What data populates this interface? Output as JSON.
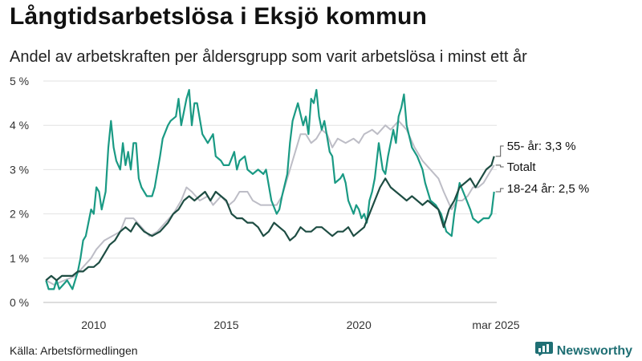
{
  "header": {
    "title": "Långtidsarbetslösa i Eksjö kommun",
    "subtitle": "Andel av arbetskraften per åldersgrupp som varit arbetslösa i minst ett år"
  },
  "footer": {
    "source": "Källa: Arbetsförmedlingen",
    "brand": "Newsworthy"
  },
  "icons": {
    "brand_logo": "newsworthy-logo-icon"
  },
  "colors": {
    "young": "#1a9a84",
    "older": "#1e4d43",
    "total": "#bdbdc6",
    "brand": "#1f6f74"
  },
  "chart_data": {
    "type": "line",
    "xlim": [
      2008.1,
      2025.2
    ],
    "ylim": [
      0,
      5
    ],
    "y_ticks": [
      0,
      1,
      2,
      3,
      4,
      5
    ],
    "y_tick_labels": [
      "0 %",
      "1 %",
      "2 %",
      "3 %",
      "4 %",
      "5 %"
    ],
    "x_ticks": [
      2010,
      2015,
      2020,
      2025.17
    ],
    "x_tick_labels": [
      "2010",
      "2015",
      "2020",
      "mar 2025"
    ],
    "grid": true,
    "series": [
      {
        "key": "total",
        "name": "Totalt",
        "label_text": "Totalt",
        "points": [
          [
            2008.2,
            0.5
          ],
          [
            2008.5,
            0.4
          ],
          [
            2008.9,
            0.5
          ],
          [
            2009.3,
            0.6
          ],
          [
            2009.6,
            0.8
          ],
          [
            2009.9,
            1.0
          ],
          [
            2010.1,
            1.2
          ],
          [
            2010.4,
            1.4
          ],
          [
            2010.7,
            1.5
          ],
          [
            2011.0,
            1.6
          ],
          [
            2011.2,
            1.9
          ],
          [
            2011.5,
            1.9
          ],
          [
            2011.8,
            1.7
          ],
          [
            2012.1,
            1.5
          ],
          [
            2012.4,
            1.6
          ],
          [
            2012.7,
            1.8
          ],
          [
            2013.0,
            2.0
          ],
          [
            2013.3,
            2.3
          ],
          [
            2013.5,
            2.6
          ],
          [
            2013.7,
            2.5
          ],
          [
            2014.0,
            2.3
          ],
          [
            2014.3,
            2.4
          ],
          [
            2014.5,
            2.2
          ],
          [
            2014.8,
            2.4
          ],
          [
            2015.1,
            2.2
          ],
          [
            2015.3,
            2.3
          ],
          [
            2015.5,
            2.5
          ],
          [
            2015.8,
            2.5
          ],
          [
            2016.0,
            2.3
          ],
          [
            2016.3,
            2.2
          ],
          [
            2016.6,
            2.2
          ],
          [
            2016.9,
            2.2
          ],
          [
            2017.1,
            2.4
          ],
          [
            2017.4,
            3.0
          ],
          [
            2017.6,
            3.4
          ],
          [
            2017.8,
            3.8
          ],
          [
            2018.0,
            3.8
          ],
          [
            2018.2,
            3.6
          ],
          [
            2018.4,
            3.7
          ],
          [
            2018.6,
            3.9
          ],
          [
            2018.8,
            3.8
          ],
          [
            2019.0,
            3.5
          ],
          [
            2019.2,
            3.7
          ],
          [
            2019.5,
            3.6
          ],
          [
            2019.8,
            3.7
          ],
          [
            2020.0,
            3.6
          ],
          [
            2020.2,
            3.8
          ],
          [
            2020.5,
            3.9
          ],
          [
            2020.7,
            3.8
          ],
          [
            2021.0,
            4.0
          ],
          [
            2021.2,
            3.9
          ],
          [
            2021.5,
            4.1
          ],
          [
            2021.8,
            3.9
          ],
          [
            2022.1,
            3.5
          ],
          [
            2022.4,
            3.2
          ],
          [
            2022.7,
            3.0
          ],
          [
            2023.0,
            2.8
          ],
          [
            2023.2,
            2.5
          ],
          [
            2023.5,
            2.1
          ],
          [
            2023.7,
            2.3
          ],
          [
            2023.9,
            2.3
          ],
          [
            2024.1,
            2.4
          ],
          [
            2024.3,
            2.6
          ],
          [
            2024.5,
            2.6
          ],
          [
            2024.7,
            2.7
          ],
          [
            2024.9,
            2.9
          ],
          [
            2025.1,
            3.1
          ]
        ]
      },
      {
        "key": "young",
        "name": "18-24 år",
        "label_text": "18-24 år: 2,5 %",
        "points": [
          [
            2008.2,
            0.5
          ],
          [
            2008.3,
            0.3
          ],
          [
            2008.5,
            0.3
          ],
          [
            2008.6,
            0.5
          ],
          [
            2008.7,
            0.3
          ],
          [
            2008.85,
            0.4
          ],
          [
            2009.0,
            0.5
          ],
          [
            2009.2,
            0.3
          ],
          [
            2009.4,
            0.7
          ],
          [
            2009.5,
            1.0
          ],
          [
            2009.6,
            1.4
          ],
          [
            2009.7,
            1.5
          ],
          [
            2009.8,
            1.8
          ],
          [
            2009.9,
            2.1
          ],
          [
            2010.0,
            2.0
          ],
          [
            2010.1,
            2.6
          ],
          [
            2010.2,
            2.5
          ],
          [
            2010.3,
            2.1
          ],
          [
            2010.45,
            2.5
          ],
          [
            2010.55,
            3.5
          ],
          [
            2010.65,
            4.1
          ],
          [
            2010.75,
            3.5
          ],
          [
            2010.85,
            3.2
          ],
          [
            2011.0,
            3.0
          ],
          [
            2011.1,
            3.6
          ],
          [
            2011.2,
            3.1
          ],
          [
            2011.3,
            3.4
          ],
          [
            2011.4,
            3.0
          ],
          [
            2011.5,
            3.6
          ],
          [
            2011.6,
            3.6
          ],
          [
            2011.7,
            2.8
          ],
          [
            2011.8,
            2.6
          ],
          [
            2011.9,
            2.5
          ],
          [
            2012.0,
            2.4
          ],
          [
            2012.2,
            2.4
          ],
          [
            2012.3,
            2.6
          ],
          [
            2012.5,
            3.3
          ],
          [
            2012.6,
            3.7
          ],
          [
            2012.8,
            4.0
          ],
          [
            2012.9,
            4.1
          ],
          [
            2013.1,
            4.2
          ],
          [
            2013.2,
            4.6
          ],
          [
            2013.3,
            4.0
          ],
          [
            2013.4,
            4.3
          ],
          [
            2013.5,
            4.6
          ],
          [
            2013.6,
            4.8
          ],
          [
            2013.7,
            4.0
          ],
          [
            2013.8,
            4.5
          ],
          [
            2013.9,
            4.5
          ],
          [
            2014.1,
            3.8
          ],
          [
            2014.3,
            3.6
          ],
          [
            2014.5,
            3.8
          ],
          [
            2014.6,
            3.3
          ],
          [
            2014.8,
            3.2
          ],
          [
            2014.9,
            3.1
          ],
          [
            2015.1,
            3.1
          ],
          [
            2015.3,
            3.4
          ],
          [
            2015.4,
            3.0
          ],
          [
            2015.5,
            3.2
          ],
          [
            2015.7,
            3.3
          ],
          [
            2015.8,
            3.0
          ],
          [
            2016.0,
            2.9
          ],
          [
            2016.2,
            3.0
          ],
          [
            2016.4,
            2.9
          ],
          [
            2016.5,
            3.0
          ],
          [
            2016.7,
            2.3
          ],
          [
            2016.9,
            2.0
          ],
          [
            2017.0,
            2.1
          ],
          [
            2017.1,
            2.4
          ],
          [
            2017.3,
            2.9
          ],
          [
            2017.4,
            3.6
          ],
          [
            2017.5,
            4.1
          ],
          [
            2017.6,
            4.3
          ],
          [
            2017.7,
            4.5
          ],
          [
            2017.9,
            4.0
          ],
          [
            2018.0,
            4.2
          ],
          [
            2018.1,
            3.8
          ],
          [
            2018.2,
            4.6
          ],
          [
            2018.3,
            4.5
          ],
          [
            2018.4,
            4.8
          ],
          [
            2018.5,
            4.2
          ],
          [
            2018.6,
            3.9
          ],
          [
            2018.7,
            4.1
          ],
          [
            2018.9,
            3.4
          ],
          [
            2019.0,
            3.3
          ],
          [
            2019.1,
            2.7
          ],
          [
            2019.3,
            2.8
          ],
          [
            2019.4,
            2.9
          ],
          [
            2019.5,
            2.7
          ],
          [
            2019.6,
            2.3
          ],
          [
            2019.8,
            2.0
          ],
          [
            2019.9,
            2.2
          ],
          [
            2020.0,
            2.1
          ],
          [
            2020.1,
            1.9
          ],
          [
            2020.2,
            2.0
          ],
          [
            2020.3,
            1.8
          ],
          [
            2020.4,
            2.3
          ],
          [
            2020.5,
            2.5
          ],
          [
            2020.6,
            2.8
          ],
          [
            2020.75,
            3.6
          ],
          [
            2020.9,
            3.0
          ],
          [
            2021.0,
            2.9
          ],
          [
            2021.1,
            3.3
          ],
          [
            2021.3,
            3.9
          ],
          [
            2021.4,
            3.6
          ],
          [
            2021.5,
            4.2
          ],
          [
            2021.6,
            4.4
          ],
          [
            2021.7,
            4.7
          ],
          [
            2021.8,
            4.0
          ],
          [
            2022.0,
            3.5
          ],
          [
            2022.2,
            3.3
          ],
          [
            2022.4,
            3.0
          ],
          [
            2022.5,
            2.7
          ],
          [
            2022.7,
            2.3
          ],
          [
            2022.9,
            2.2
          ],
          [
            2023.1,
            2.0
          ],
          [
            2023.3,
            1.6
          ],
          [
            2023.5,
            1.5
          ],
          [
            2023.6,
            2.0
          ],
          [
            2023.8,
            2.7
          ],
          [
            2024.0,
            2.4
          ],
          [
            2024.2,
            2.1
          ],
          [
            2024.3,
            1.9
          ],
          [
            2024.5,
            1.8
          ],
          [
            2024.7,
            1.9
          ],
          [
            2024.9,
            1.9
          ],
          [
            2025.0,
            2.0
          ],
          [
            2025.1,
            2.5
          ]
        ]
      },
      {
        "key": "older",
        "name": "55- år",
        "label_text": "55- år: 3,3 %",
        "points": [
          [
            2008.2,
            0.5
          ],
          [
            2008.4,
            0.6
          ],
          [
            2008.6,
            0.5
          ],
          [
            2008.8,
            0.6
          ],
          [
            2009.0,
            0.6
          ],
          [
            2009.2,
            0.6
          ],
          [
            2009.4,
            0.7
          ],
          [
            2009.6,
            0.7
          ],
          [
            2009.8,
            0.8
          ],
          [
            2010.0,
            0.8
          ],
          [
            2010.2,
            0.9
          ],
          [
            2010.4,
            1.1
          ],
          [
            2010.6,
            1.3
          ],
          [
            2010.8,
            1.4
          ],
          [
            2011.0,
            1.6
          ],
          [
            2011.2,
            1.7
          ],
          [
            2011.4,
            1.6
          ],
          [
            2011.6,
            1.8
          ],
          [
            2011.9,
            1.6
          ],
          [
            2012.2,
            1.5
          ],
          [
            2012.5,
            1.6
          ],
          [
            2012.8,
            1.8
          ],
          [
            2013.0,
            2.0
          ],
          [
            2013.2,
            2.1
          ],
          [
            2013.4,
            2.3
          ],
          [
            2013.6,
            2.4
          ],
          [
            2013.8,
            2.3
          ],
          [
            2014.0,
            2.4
          ],
          [
            2014.2,
            2.5
          ],
          [
            2014.4,
            2.3
          ],
          [
            2014.6,
            2.5
          ],
          [
            2014.8,
            2.4
          ],
          [
            2015.0,
            2.3
          ],
          [
            2015.2,
            2.0
          ],
          [
            2015.4,
            1.9
          ],
          [
            2015.6,
            1.9
          ],
          [
            2015.8,
            1.8
          ],
          [
            2016.0,
            1.8
          ],
          [
            2016.2,
            1.7
          ],
          [
            2016.4,
            1.5
          ],
          [
            2016.6,
            1.6
          ],
          [
            2016.8,
            1.8
          ],
          [
            2017.0,
            1.7
          ],
          [
            2017.2,
            1.6
          ],
          [
            2017.4,
            1.4
          ],
          [
            2017.6,
            1.5
          ],
          [
            2017.8,
            1.7
          ],
          [
            2018.0,
            1.6
          ],
          [
            2018.2,
            1.6
          ],
          [
            2018.4,
            1.7
          ],
          [
            2018.6,
            1.7
          ],
          [
            2018.8,
            1.6
          ],
          [
            2019.0,
            1.5
          ],
          [
            2019.2,
            1.6
          ],
          [
            2019.4,
            1.6
          ],
          [
            2019.6,
            1.7
          ],
          [
            2019.8,
            1.5
          ],
          [
            2020.0,
            1.6
          ],
          [
            2020.2,
            1.7
          ],
          [
            2020.4,
            2.0
          ],
          [
            2020.6,
            2.3
          ],
          [
            2020.8,
            2.6
          ],
          [
            2021.0,
            2.8
          ],
          [
            2021.2,
            2.6
          ],
          [
            2021.4,
            2.5
          ],
          [
            2021.6,
            2.4
          ],
          [
            2021.8,
            2.3
          ],
          [
            2022.0,
            2.4
          ],
          [
            2022.2,
            2.3
          ],
          [
            2022.4,
            2.2
          ],
          [
            2022.6,
            2.3
          ],
          [
            2022.8,
            2.2
          ],
          [
            2023.0,
            2.1
          ],
          [
            2023.2,
            1.7
          ],
          [
            2023.4,
            2.1
          ],
          [
            2023.6,
            2.3
          ],
          [
            2023.8,
            2.6
          ],
          [
            2024.0,
            2.7
          ],
          [
            2024.2,
            2.8
          ],
          [
            2024.4,
            2.6
          ],
          [
            2024.6,
            2.8
          ],
          [
            2024.8,
            3.0
          ],
          [
            2025.0,
            3.1
          ],
          [
            2025.1,
            3.3
          ]
        ]
      }
    ]
  }
}
